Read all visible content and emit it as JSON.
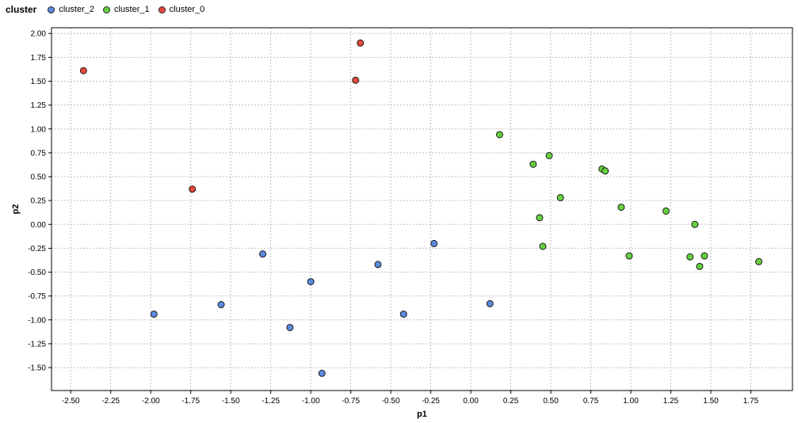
{
  "chart_data": {
    "type": "scatter",
    "legend": {
      "title": "cluster",
      "placement": "top-left",
      "items": [
        {
          "label": "cluster_2",
          "color": "#5b8be0"
        },
        {
          "label": "cluster_1",
          "color": "#66d13f"
        },
        {
          "label": "cluster_0",
          "color": "#e8493a"
        }
      ]
    },
    "xlabel": "p1",
    "ylabel": "p2",
    "xlim": [
      -2.62,
      2.01
    ],
    "ylim": [
      -1.74,
      2.06
    ],
    "x_ticks": [
      -2.5,
      -2.25,
      -2.0,
      -1.75,
      -1.5,
      -1.25,
      -1.0,
      -0.75,
      -0.5,
      -0.25,
      0.0,
      0.25,
      0.5,
      0.75,
      1.0,
      1.25,
      1.5,
      1.75
    ],
    "x_tick_labels": [
      "-2.50",
      "-2.25",
      "-2.00",
      "-1.75",
      "-1.50",
      "-1.25",
      "-1.00",
      "-0.75",
      "-0.50",
      "-0.25",
      "0.00",
      "0.25",
      "0.50",
      "0.75",
      "1.00",
      "1.25",
      "1.50",
      "1.75"
    ],
    "y_ticks": [
      2.0,
      1.75,
      1.5,
      1.25,
      1.0,
      0.75,
      0.5,
      0.25,
      0.0,
      -0.25,
      -0.5,
      -0.75,
      -1.0,
      -1.25,
      -1.5
    ],
    "y_tick_labels": [
      "2.00",
      "1.75",
      "1.50",
      "1.25",
      "1.00",
      "0.75",
      "0.50",
      "0.25",
      "0.00",
      "-0.25",
      "-0.50",
      "-0.75",
      "-1.00",
      "-1.25",
      "-1.50"
    ],
    "grid": true,
    "series": [
      {
        "name": "cluster_2",
        "color": "#5b8be0",
        "points": [
          {
            "x": -1.98,
            "y": -0.94
          },
          {
            "x": -1.56,
            "y": -0.84
          },
          {
            "x": -1.3,
            "y": -0.31
          },
          {
            "x": -1.13,
            "y": -1.08
          },
          {
            "x": -1.0,
            "y": -0.6
          },
          {
            "x": -0.93,
            "y": -1.56
          },
          {
            "x": -0.58,
            "y": -0.42
          },
          {
            "x": -0.42,
            "y": -0.94
          },
          {
            "x": -0.23,
            "y": -0.2
          },
          {
            "x": 0.12,
            "y": -0.83
          }
        ]
      },
      {
        "name": "cluster_1",
        "color": "#66d13f",
        "points": [
          {
            "x": 0.18,
            "y": 0.94
          },
          {
            "x": 0.39,
            "y": 0.63
          },
          {
            "x": 0.43,
            "y": 0.07
          },
          {
            "x": 0.45,
            "y": -0.23
          },
          {
            "x": 0.49,
            "y": 0.72
          },
          {
            "x": 0.56,
            "y": 0.28
          },
          {
            "x": 0.82,
            "y": 0.58
          },
          {
            "x": 0.84,
            "y": 0.56
          },
          {
            "x": 0.94,
            "y": 0.18
          },
          {
            "x": 0.99,
            "y": -0.33
          },
          {
            "x": 1.22,
            "y": 0.14
          },
          {
            "x": 1.37,
            "y": -0.34
          },
          {
            "x": 1.4,
            "y": 0.0
          },
          {
            "x": 1.43,
            "y": -0.44
          },
          {
            "x": 1.46,
            "y": -0.33
          },
          {
            "x": 1.8,
            "y": -0.39
          }
        ]
      },
      {
        "name": "cluster_0",
        "color": "#e8493a",
        "points": [
          {
            "x": -2.42,
            "y": 1.61
          },
          {
            "x": -1.74,
            "y": 0.37
          },
          {
            "x": -0.72,
            "y": 1.51
          },
          {
            "x": -0.69,
            "y": 1.9
          }
        ]
      }
    ]
  }
}
